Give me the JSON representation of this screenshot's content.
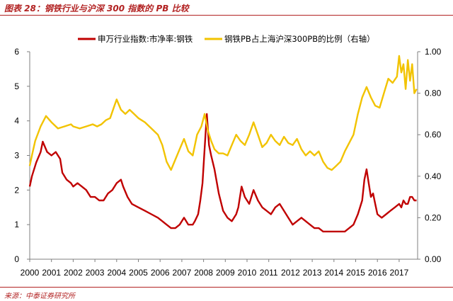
{
  "header": {
    "title": "图表 28：钢铁行业与沪深 300 指数的 PB 比较"
  },
  "footer": {
    "source": "来源：中泰证券研究所"
  },
  "chart_data": {
    "type": "line",
    "title": "图表 28：钢铁行业与沪深 300 指数的 PB 比较",
    "xlabel": "",
    "ylabel": "",
    "x_ticks": [
      "2000",
      "2001",
      "2002",
      "2003",
      "2004",
      "2005",
      "2006",
      "2007",
      "2008",
      "2009",
      "2010",
      "2011",
      "2012",
      "2013",
      "2014",
      "2015",
      "2016",
      "2017"
    ],
    "xlim": [
      2000.0,
      2017.85
    ],
    "ylim_left": [
      0,
      6
    ],
    "y_ticks_left": [
      "0",
      "1",
      "2",
      "3",
      "4",
      "5",
      "6"
    ],
    "ylim_right": [
      0.0,
      1.0
    ],
    "y_ticks_right": [
      "0.00",
      "0.20",
      "0.40",
      "0.60",
      "0.80",
      "1.00"
    ],
    "grid": false,
    "legend_position": "top",
    "series": [
      {
        "name": "申万行业指数:市净率:钢铁",
        "axis": "left",
        "color": "#c00000",
        "x": [
          2000.0,
          2000.1,
          2000.3,
          2000.5,
          2000.6,
          2000.8,
          2001.0,
          2001.2,
          2001.4,
          2001.5,
          2001.7,
          2001.9,
          2002.0,
          2002.2,
          2002.4,
          2002.6,
          2002.8,
          2003.0,
          2003.2,
          2003.4,
          2003.6,
          2003.8,
          2004.0,
          2004.2,
          2004.3,
          2004.5,
          2004.7,
          2005.0,
          2005.3,
          2005.6,
          2005.9,
          2006.1,
          2006.3,
          2006.5,
          2006.7,
          2006.9,
          2007.1,
          2007.3,
          2007.5,
          2007.6,
          2007.75,
          2007.85,
          2007.95,
          2008.05,
          2008.15,
          2008.25,
          2008.35,
          2008.5,
          2008.7,
          2008.9,
          2009.1,
          2009.3,
          2009.5,
          2009.6,
          2009.75,
          2009.9,
          2010.1,
          2010.3,
          2010.5,
          2010.7,
          2010.9,
          2011.1,
          2011.3,
          2011.5,
          2011.7,
          2011.9,
          2012.1,
          2012.3,
          2012.5,
          2012.7,
          2012.9,
          2013.1,
          2013.3,
          2013.5,
          2013.7,
          2013.9,
          2014.1,
          2014.3,
          2014.5,
          2014.7,
          2014.9,
          2015.1,
          2015.3,
          2015.4,
          2015.5,
          2015.6,
          2015.7,
          2015.8,
          2015.9,
          2016.0,
          2016.2,
          2016.4,
          2016.6,
          2016.8,
          2017.0,
          2017.1,
          2017.2,
          2017.3,
          2017.4,
          2017.5,
          2017.6,
          2017.7,
          2017.8
        ],
        "values": [
          2.1,
          2.4,
          2.8,
          3.1,
          3.4,
          3.1,
          3.0,
          3.1,
          2.9,
          2.5,
          2.3,
          2.2,
          2.1,
          2.2,
          2.1,
          2.0,
          1.8,
          1.8,
          1.7,
          1.7,
          1.9,
          2.0,
          2.2,
          2.3,
          2.1,
          1.8,
          1.6,
          1.5,
          1.4,
          1.3,
          1.2,
          1.1,
          1.0,
          0.9,
          0.9,
          1.0,
          1.2,
          1.0,
          1.0,
          1.1,
          1.3,
          1.7,
          2.2,
          3.2,
          4.2,
          3.3,
          3.0,
          2.6,
          1.9,
          1.4,
          1.2,
          1.1,
          1.3,
          1.5,
          2.1,
          1.8,
          1.6,
          2.0,
          1.7,
          1.5,
          1.4,
          1.3,
          1.5,
          1.6,
          1.4,
          1.2,
          1.0,
          1.1,
          1.2,
          1.1,
          1.0,
          0.9,
          0.9,
          0.8,
          0.8,
          0.8,
          0.8,
          0.8,
          0.8,
          0.9,
          1.0,
          1.3,
          1.7,
          2.3,
          2.6,
          2.2,
          1.8,
          1.9,
          1.6,
          1.3,
          1.2,
          1.3,
          1.4,
          1.5,
          1.6,
          1.5,
          1.7,
          1.6,
          1.6,
          1.8,
          1.8,
          1.7,
          1.7
        ]
      },
      {
        "name": "钢铁PB占上海沪深300PB的比例（右轴）",
        "axis": "right",
        "color": "#f2c300",
        "x": [
          2000.0,
          2000.1,
          2000.25,
          2000.5,
          2000.75,
          2001.0,
          2001.3,
          2001.6,
          2001.9,
          2002.0,
          2002.3,
          2002.6,
          2002.9,
          2003.1,
          2003.3,
          2003.5,
          2003.7,
          2003.9,
          2004.0,
          2004.2,
          2004.4,
          2004.6,
          2004.8,
          2005.0,
          2005.3,
          2005.6,
          2005.9,
          2006.1,
          2006.3,
          2006.5,
          2006.7,
          2006.9,
          2007.1,
          2007.3,
          2007.5,
          2007.7,
          2007.9,
          2008.05,
          2008.2,
          2008.35,
          2008.5,
          2008.7,
          2008.9,
          2009.1,
          2009.3,
          2009.5,
          2009.7,
          2009.9,
          2010.1,
          2010.3,
          2010.5,
          2010.7,
          2010.9,
          2011.1,
          2011.3,
          2011.5,
          2011.7,
          2011.9,
          2012.1,
          2012.3,
          2012.5,
          2012.7,
          2012.9,
          2013.1,
          2013.3,
          2013.5,
          2013.7,
          2013.9,
          2014.1,
          2014.3,
          2014.5,
          2014.7,
          2014.9,
          2015.1,
          2015.3,
          2015.5,
          2015.7,
          2015.9,
          2016.1,
          2016.3,
          2016.5,
          2016.7,
          2016.9,
          2017.0,
          2017.1,
          2017.2,
          2017.3,
          2017.4,
          2017.5,
          2017.6,
          2017.7,
          2017.8
        ],
        "values": [
          0.45,
          0.5,
          0.57,
          0.64,
          0.69,
          0.66,
          0.63,
          0.64,
          0.65,
          0.64,
          0.63,
          0.64,
          0.65,
          0.64,
          0.65,
          0.67,
          0.68,
          0.74,
          0.77,
          0.72,
          0.7,
          0.72,
          0.7,
          0.68,
          0.66,
          0.63,
          0.6,
          0.55,
          0.47,
          0.43,
          0.48,
          0.53,
          0.58,
          0.52,
          0.5,
          0.6,
          0.64,
          0.7,
          0.62,
          0.57,
          0.53,
          0.51,
          0.51,
          0.5,
          0.55,
          0.6,
          0.57,
          0.55,
          0.6,
          0.66,
          0.6,
          0.54,
          0.56,
          0.6,
          0.57,
          0.55,
          0.59,
          0.56,
          0.55,
          0.58,
          0.53,
          0.5,
          0.52,
          0.5,
          0.52,
          0.47,
          0.44,
          0.43,
          0.45,
          0.47,
          0.52,
          0.56,
          0.6,
          0.7,
          0.78,
          0.83,
          0.78,
          0.74,
          0.73,
          0.8,
          0.87,
          0.85,
          0.88,
          0.98,
          0.9,
          0.94,
          0.82,
          0.96,
          0.86,
          0.94,
          0.8,
          0.82
        ]
      }
    ]
  }
}
